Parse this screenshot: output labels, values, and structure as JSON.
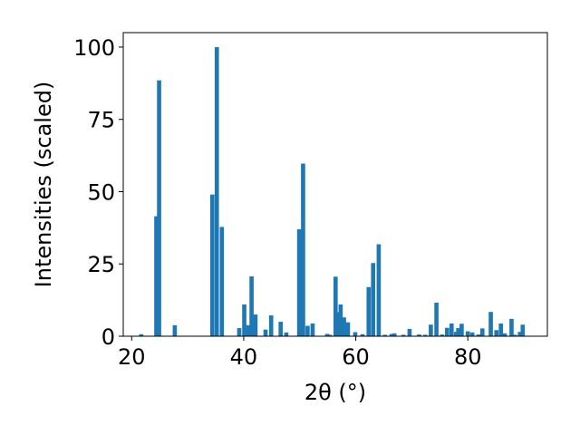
{
  "chart_data": {
    "type": "bar",
    "xlabel": "2θ (°)",
    "ylabel": "Intensities (scaled)",
    "xlim": [
      18.5,
      94.2
    ],
    "ylim": [
      0,
      105
    ],
    "xticks": [
      20,
      40,
      60,
      80
    ],
    "yticks": [
      0,
      25,
      50,
      75,
      100
    ],
    "bar_width": 0.75,
    "bar_color": "#1f77b4",
    "grid": false,
    "x": [
      21.7,
      24.4,
      24.9,
      27.7,
      34.4,
      35.2,
      36.1,
      39.2,
      40.1,
      40.8,
      41.4,
      42.1,
      43.9,
      44.9,
      46.6,
      47.6,
      49.9,
      50.6,
      51.4,
      52.3,
      54.9,
      55.4,
      56.4,
      56.9,
      57.3,
      57.9,
      58.6,
      59.9,
      61.2,
      62.3,
      63.1,
      64.1,
      65.2,
      66.4,
      66.9,
      68.5,
      69.6,
      71.3,
      72.4,
      73.4,
      74.4,
      75.4,
      76.3,
      77.1,
      77.9,
      78.3,
      78.9,
      80.0,
      80.8,
      81.9,
      82.6,
      84.1,
      85.1,
      85.9,
      86.6,
      87.8,
      88.4,
      89.3,
      89.8
    ],
    "values": [
      0.7,
      41.5,
      88.5,
      3.8,
      49,
      100,
      37.8,
      2.8,
      11,
      3.8,
      20.7,
      7.5,
      2.3,
      7.2,
      5,
      1.3,
      37,
      59.7,
      3.6,
      4.4,
      0.8,
      0.5,
      20.6,
      8.3,
      11,
      6.5,
      4.8,
      1.4,
      0.7,
      17,
      25.3,
      31.8,
      0.5,
      0.8,
      1.0,
      0.5,
      2.5,
      0.6,
      0.5,
      4.0,
      11.6,
      0.6,
      2.9,
      4.4,
      1.5,
      2.8,
      4.3,
      1.7,
      1.3,
      0.6,
      2.7,
      8.4,
      2.1,
      4.4,
      1.0,
      6.0,
      0.5,
      1.5,
      4.0
    ]
  }
}
